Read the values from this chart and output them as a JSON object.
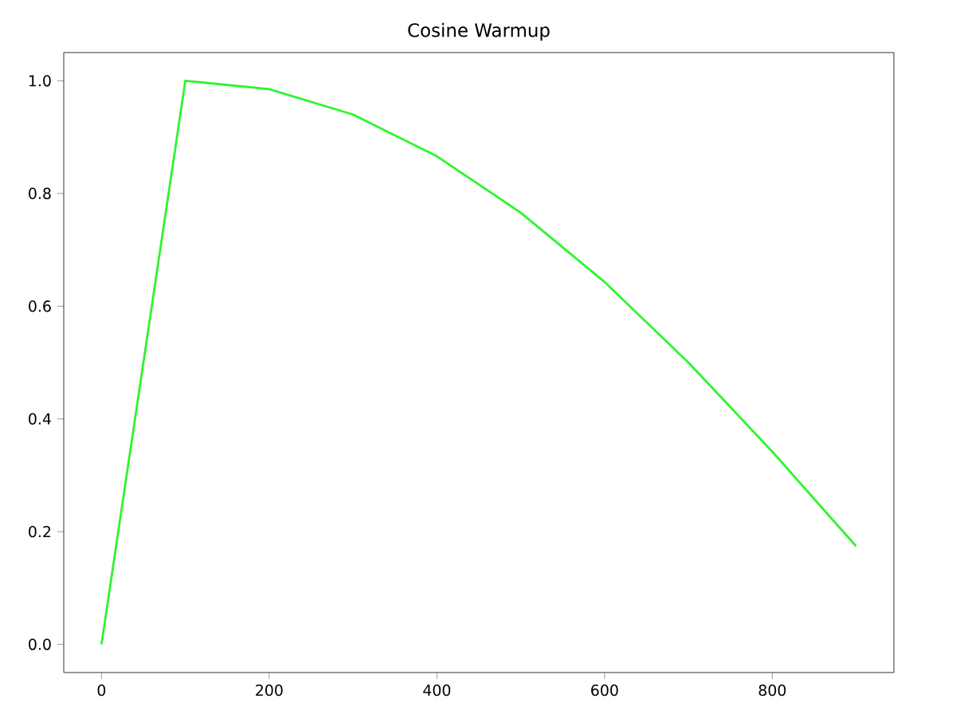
{
  "chart_data": {
    "type": "line",
    "title": "Cosine Warmup",
    "x": [
      0,
      100,
      200,
      300,
      400,
      500,
      600,
      700,
      800,
      900
    ],
    "series": [
      {
        "color": "#2ef52e",
        "values": [
          0,
          1.0,
          0.985,
          0.94,
          0.866,
          0.766,
          0.643,
          0.5,
          0.342,
          0.174
        ]
      }
    ],
    "xlim": [
      -45,
      945
    ],
    "ylim": [
      -0.05,
      1.05
    ],
    "xticks": [
      0,
      200,
      400,
      600,
      800
    ],
    "yticks": [
      {
        "value": 0,
        "label": "0.0"
      },
      {
        "value": 0.2,
        "label": "0.2"
      },
      {
        "value": 0.4,
        "label": "0.4"
      },
      {
        "value": 0.6,
        "label": "0.6"
      },
      {
        "value": 0.8,
        "label": "0.8"
      },
      {
        "value": 1.0,
        "label": "1.0"
      }
    ],
    "grid": false,
    "marker": "none",
    "line_style": "solid"
  }
}
